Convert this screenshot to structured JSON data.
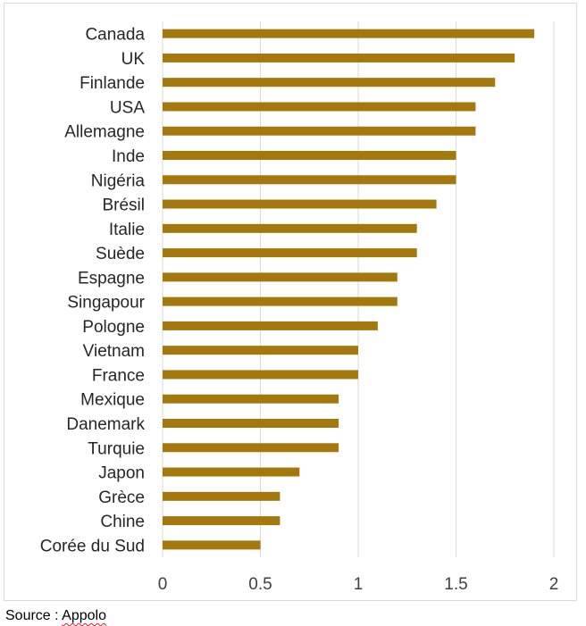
{
  "chart_data": {
    "type": "bar",
    "orientation": "horizontal",
    "categories": [
      "Canada",
      "UK",
      "Finlande",
      "USA",
      "Allemagne",
      "Inde",
      "Nigéria",
      "Brésil",
      "Italie",
      "Suède",
      "Espagne",
      "Singapour",
      "Pologne",
      "Vietnam",
      "France",
      "Mexique",
      "Danemark",
      "Turquie",
      "Japon",
      "Grèce",
      "Chine",
      "Corée du Sud"
    ],
    "values": [
      1.9,
      1.8,
      1.7,
      1.6,
      1.6,
      1.5,
      1.5,
      1.4,
      1.3,
      1.3,
      1.2,
      1.2,
      1.1,
      1.0,
      1.0,
      0.9,
      0.9,
      0.9,
      0.7,
      0.6,
      0.6,
      0.5
    ],
    "xticks": [
      "0",
      "0.5",
      "1",
      "1.5",
      "2"
    ],
    "xlim": [
      0,
      2
    ],
    "grid": "vertical",
    "bar_color": "#a5780e",
    "grid_color": "#d9d9d9",
    "title": "",
    "xlabel": "",
    "ylabel": ""
  },
  "source": {
    "prefix": "Source : ",
    "name": "Appolo"
  }
}
